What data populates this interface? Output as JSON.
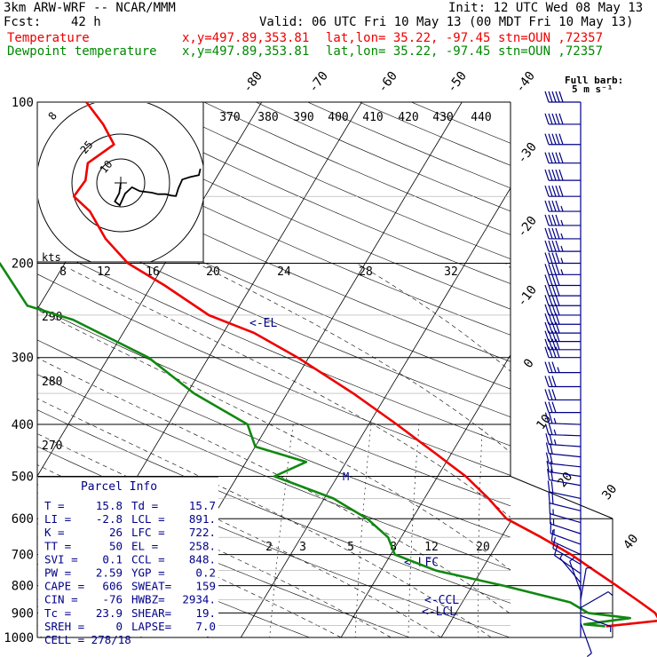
{
  "header": {
    "model": "3km ARW-WRF -- NCAR/MMM",
    "init": "Init: 12 UTC Wed 08 May 13",
    "fcst_label": "Fcst:",
    "fcst_value": "42 h",
    "valid": "Valid: 06 UTC Fri 10 May 13 (00 MDT Fri 10 May 13)",
    "temp_label": "Temperature",
    "dew_label": "Dewpoint temperature",
    "xy": "x,y=497.89,353.81",
    "latlon": "lat,lon= 35.22, -97.45",
    "stn": "stn=OUN ,72357"
  },
  "colors": {
    "temperature": "#ee0000",
    "dewpoint": "#118811",
    "text": "#000000",
    "panel": "#000088",
    "wind": "#000088"
  },
  "chart_data": {
    "type": "line",
    "title": "",
    "y_axis": {
      "label": "",
      "scale": "log",
      "range": [
        1000,
        100
      ],
      "ticks": [
        100,
        200,
        300,
        400,
        500,
        600,
        700,
        800,
        900,
        1000
      ]
    },
    "isotherm_labels": [
      "-80",
      "-70",
      "-60",
      "-50",
      "-40",
      "-30",
      "-20",
      "-10",
      "0",
      "10",
      "20",
      "30",
      "40"
    ],
    "theta_labels": [
      "370",
      "380",
      "390",
      "400",
      "410",
      "420",
      "430",
      "440"
    ],
    "theta_left_labels": [
      "290",
      "280",
      "270"
    ],
    "mixing_ratio_top_labels": [
      "8",
      "12",
      "16",
      "20",
      "24",
      "28",
      "32"
    ],
    "mixing_ratio_low_labels": [
      "2",
      "3",
      "5",
      "8",
      "12",
      "20"
    ],
    "kts_label": "kts",
    "kts_labels": [
      "8",
      "25",
      "10"
    ],
    "wind_key": {
      "line1": "Full barb:",
      "line2": "5 m s⁻¹"
    },
    "levels": [
      {
        "text": "<-EL",
        "p": 258
      },
      {
        "text": "<-LFC",
        "p": 722
      },
      {
        "text": "<-CCL",
        "p": 848
      },
      {
        "text": "<-LCL",
        "p": 891
      }
    ],
    "marker": "M",
    "series": [
      {
        "name": "Temperature",
        "points": [
          [
            953,
            15.8
          ],
          [
            930,
            20.8
          ],
          [
            900,
            19.9
          ],
          [
            860,
            17.8
          ],
          [
            800,
            14.4
          ],
          [
            750,
            11.3
          ],
          [
            700,
            8.0
          ],
          [
            650,
            4.0
          ],
          [
            600,
            -0.6
          ],
          [
            550,
            -3.6
          ],
          [
            500,
            -7.2
          ],
          [
            450,
            -11.9
          ],
          [
            400,
            -17.2
          ],
          [
            350,
            -23.4
          ],
          [
            300,
            -31.1
          ],
          [
            270,
            -36.9
          ],
          [
            250,
            -42.5
          ],
          [
            220,
            -48.7
          ],
          [
            200,
            -53.7
          ],
          [
            180,
            -57.4
          ],
          [
            160,
            -60.6
          ],
          [
            150,
            -63.1
          ],
          [
            140,
            -62.9
          ],
          [
            130,
            -63.7
          ],
          [
            120,
            -62.2
          ],
          [
            110,
            -64.5
          ],
          [
            100,
            -67.5
          ]
        ]
      },
      {
        "name": "Dewpoint temperature",
        "points": [
          [
            953,
            15.7
          ],
          [
            945,
            13.5
          ],
          [
            920,
            17.7
          ],
          [
            900,
            13.2
          ],
          [
            860,
            10.8
          ],
          [
            800,
            3.1
          ],
          [
            750,
            -4.5
          ],
          [
            700,
            -9.6
          ],
          [
            650,
            -11.3
          ],
          [
            600,
            -14.5
          ],
          [
            550,
            -19.1
          ],
          [
            500,
            -26.3
          ],
          [
            470,
            -24.0
          ],
          [
            440,
            -30.0
          ],
          [
            400,
            -32.1
          ],
          [
            350,
            -39.3
          ],
          [
            300,
            -46.0
          ],
          [
            255,
            -55.8
          ],
          [
            240,
            -61.2
          ],
          [
            200,
            -66.5
          ],
          [
            170,
            -73.8
          ],
          [
            150,
            -81.3
          ],
          [
            130,
            -87.3
          ],
          [
            110,
            -94.0
          ],
          [
            100,
            -96.5
          ]
        ]
      }
    ],
    "hodograph": {
      "points": [
        [
          0.0,
          0.0
        ],
        [
          -0.3,
          -2.1
        ],
        [
          -1.2,
          -3.8
        ],
        [
          -0.2,
          -4.6
        ],
        [
          0.9,
          -2.2
        ],
        [
          2.3,
          -0.9
        ],
        [
          3.9,
          -1.7
        ],
        [
          6.4,
          -2.0
        ],
        [
          7.6,
          -2.3
        ],
        [
          9.2,
          -2.3
        ],
        [
          10.4,
          -2.6
        ],
        [
          11.3,
          -2.7
        ],
        [
          11.8,
          -1.1
        ],
        [
          12.6,
          0.7
        ],
        [
          14.2,
          1.2
        ],
        [
          16.0,
          1.6
        ],
        [
          16.3,
          2.9
        ]
      ]
    },
    "winds": [
      {
        "p": 100,
        "speed": 26,
        "dir": 270
      },
      {
        "p": 110,
        "speed": 26,
        "dir": 270
      },
      {
        "p": 120,
        "speed": 26,
        "dir": 270
      },
      {
        "p": 130,
        "speed": 25,
        "dir": 270
      },
      {
        "p": 140,
        "speed": 25,
        "dir": 270
      },
      {
        "p": 150,
        "speed": 25,
        "dir": 270
      },
      {
        "p": 160,
        "speed": 23,
        "dir": 270
      },
      {
        "p": 170,
        "speed": 23,
        "dir": 270
      },
      {
        "p": 180,
        "speed": 22,
        "dir": 270
      },
      {
        "p": 190,
        "speed": 22,
        "dir": 270
      },
      {
        "p": 200,
        "speed": 22,
        "dir": 270
      },
      {
        "p": 210,
        "speed": 22,
        "dir": 270
      },
      {
        "p": 220,
        "speed": 21,
        "dir": 270
      },
      {
        "p": 230,
        "speed": 21,
        "dir": 270
      },
      {
        "p": 240,
        "speed": 21,
        "dir": 270
      },
      {
        "p": 250,
        "speed": 21,
        "dir": 270
      },
      {
        "p": 260,
        "speed": 20,
        "dir": 270
      },
      {
        "p": 270,
        "speed": 20,
        "dir": 270
      },
      {
        "p": 280,
        "speed": 20,
        "dir": 270
      },
      {
        "p": 290,
        "speed": 20,
        "dir": 270
      },
      {
        "p": 300,
        "speed": 20,
        "dir": 270
      },
      {
        "p": 320,
        "speed": 18,
        "dir": 270
      },
      {
        "p": 340,
        "speed": 17,
        "dir": 270
      },
      {
        "p": 360,
        "speed": 16,
        "dir": 270
      },
      {
        "p": 380,
        "speed": 15,
        "dir": 270
      },
      {
        "p": 400,
        "speed": 14,
        "dir": 272
      },
      {
        "p": 420,
        "speed": 13,
        "dir": 272
      },
      {
        "p": 440,
        "speed": 13,
        "dir": 274
      },
      {
        "p": 460,
        "speed": 12,
        "dir": 276
      },
      {
        "p": 480,
        "speed": 12,
        "dir": 276
      },
      {
        "p": 500,
        "speed": 11,
        "dir": 278
      },
      {
        "p": 520,
        "speed": 11,
        "dir": 280
      },
      {
        "p": 550,
        "speed": 10,
        "dir": 282
      },
      {
        "p": 580,
        "speed": 10,
        "dir": 284
      },
      {
        "p": 610,
        "speed": 9,
        "dir": 286
      },
      {
        "p": 640,
        "speed": 9,
        "dir": 288
      },
      {
        "p": 670,
        "speed": 8,
        "dir": 290
      },
      {
        "p": 700,
        "speed": 7,
        "dir": 295
      },
      {
        "p": 730,
        "speed": 6,
        "dir": 300
      },
      {
        "p": 760,
        "speed": 5,
        "dir": 305
      },
      {
        "p": 790,
        "speed": 4,
        "dir": 320
      },
      {
        "p": 820,
        "speed": 4,
        "dir": 340
      },
      {
        "p": 850,
        "speed": 4,
        "dir": 10
      },
      {
        "p": 880,
        "speed": 4,
        "dir": 60
      },
      {
        "p": 910,
        "speed": 3,
        "dir": 110
      },
      {
        "p": 940,
        "speed": 2,
        "dir": 160
      }
    ]
  },
  "parcel_info": {
    "title": "Parcel Info",
    "rows": [
      [
        [
          "T  =",
          "15.8"
        ],
        [
          "Td =",
          "15.7"
        ]
      ],
      [
        [
          "LI =",
          "-2.8"
        ],
        [
          "LCL =",
          "891."
        ]
      ],
      [
        [
          "K  =",
          "26"
        ],
        [
          "LFC =",
          "722."
        ]
      ],
      [
        [
          "TT =",
          "50"
        ],
        [
          "EL  =",
          "258."
        ]
      ],
      [
        [
          "SVI =",
          "0.1"
        ],
        [
          "CCL =",
          "848."
        ]
      ],
      [
        [
          "PW =",
          "2.59"
        ],
        [
          "YGP =",
          "0.2"
        ]
      ],
      [
        [
          "CAPE =",
          "606"
        ],
        [
          "SWEAT=",
          "159"
        ]
      ],
      [
        [
          "CIN =",
          "-76"
        ],
        [
          "HWBZ=",
          "2934."
        ]
      ],
      [
        [
          "Tc =",
          "23.9"
        ],
        [
          "SHEAR=",
          "19."
        ]
      ],
      [
        [
          "SREH =",
          "0"
        ],
        [
          "LAPSE=",
          "7.0"
        ]
      ]
    ],
    "cell": "CELL = 278/18"
  }
}
